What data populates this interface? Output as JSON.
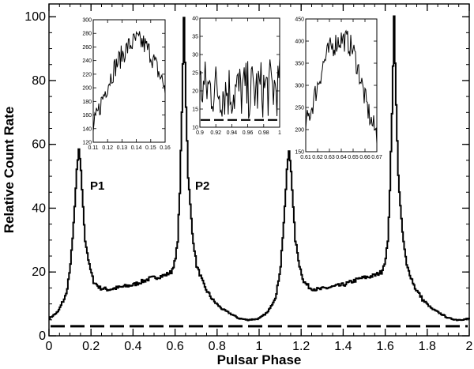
{
  "chart_data": [
    {
      "type": "line",
      "title": "",
      "xlabel": "Pulsar Phase",
      "ylabel": "Relative Count Rate",
      "xlim": [
        0,
        2
      ],
      "ylim": [
        0,
        104
      ],
      "x_ticks": [
        "0",
        "0.2",
        "0.4",
        "0.6",
        "0.8",
        "1",
        "1.2",
        "1.4",
        "1.6",
        "1.8",
        "2"
      ],
      "y_ticks": [
        "0",
        "20",
        "40",
        "60",
        "80",
        "100"
      ],
      "annotations": [
        "P1",
        "P2"
      ],
      "series": [
        {
          "style": "solid-stepped",
          "x": [
            0.0,
            0.04,
            0.08,
            0.1,
            0.12,
            0.13,
            0.14,
            0.15,
            0.16,
            0.17,
            0.19,
            0.21,
            0.24,
            0.28,
            0.32,
            0.36,
            0.4,
            0.44,
            0.48,
            0.52,
            0.55,
            0.58,
            0.6,
            0.61,
            0.62,
            0.63,
            0.64,
            0.65,
            0.66,
            0.68,
            0.7,
            0.74,
            0.78,
            0.82,
            0.86,
            0.9,
            0.94,
            0.98,
            1.0,
            1.04,
            1.08,
            1.1,
            1.12,
            1.13,
            1.14,
            1.15,
            1.16,
            1.17,
            1.19,
            1.21,
            1.24,
            1.28,
            1.32,
            1.36,
            1.4,
            1.44,
            1.48,
            1.52,
            1.55,
            1.58,
            1.6,
            1.61,
            1.62,
            1.63,
            1.64,
            1.65,
            1.66,
            1.68,
            1.7,
            1.74,
            1.78,
            1.82,
            1.86,
            1.9,
            1.94,
            1.98,
            2.0
          ],
          "y": [
            5.5,
            7.5,
            13,
            22,
            40,
            52,
            58,
            52,
            40,
            30,
            22,
            17,
            15,
            14.5,
            15,
            15.5,
            16,
            17,
            18,
            18.5,
            19,
            20,
            24,
            30,
            45,
            70,
            100,
            72,
            50,
            32,
            22,
            15,
            11,
            8.5,
            7,
            5.5,
            5,
            5.2,
            5.5,
            7.5,
            13,
            22,
            40,
            52,
            58,
            52,
            40,
            30,
            22,
            17,
            15,
            14.5,
            15,
            15.5,
            16,
            17,
            18,
            18.5,
            19,
            20,
            24,
            30,
            45,
            70,
            100,
            72,
            50,
            32,
            22,
            15,
            11,
            8.5,
            7,
            5.5,
            5,
            5.2,
            5.5
          ]
        },
        {
          "style": "dashed",
          "y_constant": 3
        }
      ]
    },
    {
      "type": "line",
      "xlim": [
        0.11,
        0.16
      ],
      "ylim": [
        120,
        300
      ],
      "x_ticks": [
        "0.11",
        "0.12",
        "0.13",
        "0.14",
        "0.15",
        "0.16"
      ],
      "y_ticks": [
        "120",
        "140",
        "160",
        "180",
        "200",
        "220",
        "240",
        "260",
        "280",
        "300"
      ],
      "series": [
        {
          "style": "solid-noisy",
          "x": [
            0.11,
            0.115,
            0.12,
            0.125,
            0.13,
            0.135,
            0.14,
            0.145,
            0.15,
            0.155,
            0.16
          ],
          "y": [
            140,
            175,
            205,
            230,
            248,
            262,
            270,
            265,
            250,
            225,
            200
          ]
        }
      ]
    },
    {
      "type": "line",
      "xlim": [
        0.9,
        1.0
      ],
      "ylim": [
        10,
        40
      ],
      "x_ticks": [
        "0.9",
        "0.92",
        "0.94",
        "0.96",
        "0.98",
        "1"
      ],
      "y_ticks": [
        "10",
        "15",
        "20",
        "25",
        "30",
        "35",
        "40"
      ],
      "series": [
        {
          "style": "solid-noisy",
          "x": [
            0.9,
            0.92,
            0.94,
            0.96,
            0.98,
            1.0
          ],
          "y": [
            21,
            20.5,
            20,
            20,
            20.5,
            21
          ]
        },
        {
          "style": "dashed",
          "y_constant": 12
        }
      ]
    },
    {
      "type": "line",
      "xlim": [
        0.61,
        0.67
      ],
      "ylim": [
        150,
        450
      ],
      "x_ticks": [
        "0.61",
        "0.62",
        "0.63",
        "0.64",
        "0.65",
        "0.66",
        "0.67"
      ],
      "y_ticks": [
        "150",
        "200",
        "250",
        "300",
        "350",
        "400",
        "450"
      ],
      "series": [
        {
          "style": "solid-noisy",
          "x": [
            0.61,
            0.615,
            0.62,
            0.625,
            0.63,
            0.635,
            0.64,
            0.645,
            0.65,
            0.655,
            0.66,
            0.665,
            0.67
          ],
          "y": [
            210,
            250,
            300,
            350,
            380,
            395,
            405,
            400,
            380,
            330,
            270,
            220,
            190
          ]
        }
      ]
    }
  ]
}
